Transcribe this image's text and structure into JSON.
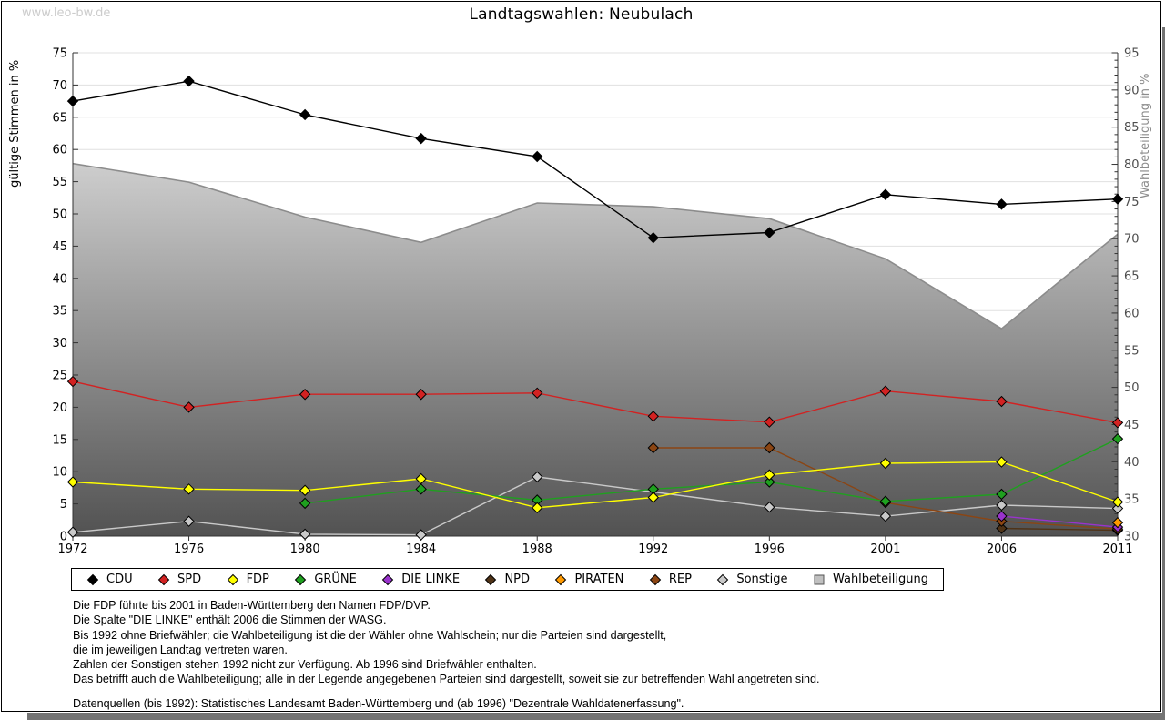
{
  "watermark": "www.leo-bw.de",
  "title": "Landtagswahlen: Neubulach",
  "chart_data": {
    "type": "line",
    "title": "Landtagswahlen: Neubulach",
    "categories": [
      "1972",
      "1976",
      "1980",
      "1984",
      "1988",
      "1992",
      "1996",
      "2001",
      "2006",
      "2011"
    ],
    "left_axis": {
      "label": "gültige Stimmen in %",
      "min": 0,
      "max": 75,
      "step": 5
    },
    "right_axis": {
      "label": "Wahlbeteiligung in %",
      "min": 30,
      "max": 95,
      "step": 5
    },
    "grid": true,
    "legend_position": "bottom",
    "series": [
      {
        "name": "CDU",
        "color": "#000000",
        "marker": "diamond",
        "axis": "left",
        "values": [
          67.5,
          70.6,
          65.4,
          61.7,
          58.9,
          46.3,
          47.1,
          53.0,
          51.5,
          52.3
        ]
      },
      {
        "name": "SPD",
        "color": "#d22222",
        "marker": "diamond",
        "axis": "left",
        "values": [
          24.0,
          20.0,
          22.0,
          22.0,
          22.2,
          18.6,
          17.7,
          22.5,
          20.9,
          17.6
        ]
      },
      {
        "name": "FDP",
        "color": "#ffff00",
        "marker": "diamond",
        "axis": "left",
        "values": [
          8.4,
          7.3,
          7.1,
          8.9,
          4.4,
          6.0,
          9.5,
          11.3,
          11.5,
          5.3
        ]
      },
      {
        "name": "GRÜNE",
        "color": "#1fa01f",
        "marker": "diamond",
        "axis": "left",
        "values": [
          null,
          null,
          5.1,
          7.3,
          5.6,
          7.3,
          8.4,
          5.4,
          6.5,
          15.1
        ]
      },
      {
        "name": "DIE LINKE",
        "color": "#9933cc",
        "marker": "diamond",
        "axis": "left",
        "values": [
          null,
          null,
          null,
          null,
          null,
          null,
          null,
          null,
          3.1,
          1.4
        ]
      },
      {
        "name": "NPD",
        "color": "#4f3317",
        "marker": "diamond",
        "axis": "left",
        "values": [
          null,
          null,
          null,
          null,
          null,
          null,
          null,
          null,
          1.2,
          0.9
        ]
      },
      {
        "name": "PIRATEN",
        "color": "#ff9900",
        "marker": "diamond",
        "axis": "left",
        "values": [
          null,
          null,
          null,
          null,
          null,
          null,
          null,
          null,
          null,
          2.1
        ]
      },
      {
        "name": "REP",
        "color": "#8b4513",
        "marker": "diamond",
        "axis": "left",
        "values": [
          null,
          null,
          null,
          null,
          null,
          13.7,
          13.7,
          5.2,
          2.3,
          1.1
        ]
      },
      {
        "name": "Sonstige",
        "color": "#c9c9c9",
        "marker": "diamond",
        "axis": "left",
        "values": [
          0.6,
          2.3,
          0.3,
          0.2,
          9.2,
          null,
          4.5,
          3.1,
          4.8,
          4.3
        ]
      },
      {
        "name": "Wahlbeteiligung",
        "type": "area",
        "axis": "right",
        "marker": "square",
        "color": "#c0c0c0",
        "stroke": "#8c8c8c",
        "fill_top": "#f2f2f2",
        "fill_bottom": "#525252",
        "values": [
          80.1,
          77.6,
          72.9,
          69.5,
          74.8,
          74.3,
          72.7,
          67.3,
          57.9,
          70.6
        ]
      }
    ]
  },
  "footnotes": [
    "Die FDP führte bis 2001 in Baden-Württemberg den Namen FDP/DVP.",
    "Die Spalte \"DIE LINKE\" enthält 2006 die Stimmen der WASG.",
    "Bis 1992 ohne Briefwähler; die Wahlbeteiligung ist die der Wähler ohne Wahlschein; nur die Parteien sind dargestellt,",
    "die im jeweiligen Landtag vertreten waren.",
    "Zahlen der Sonstigen stehen 1992 nicht zur Verfügung. Ab 1996 sind Briefwähler enthalten.",
    "Das betrifft auch die Wahlbeteiligung; alle in der Legende angegebenen Parteien sind dargestellt, soweit sie zur betreffenden Wahl angetreten sind."
  ],
  "source_line": "Datenquellen (bis 1992): Statistisches Landesamt Baden-Württemberg und (ab 1996) \"Dezentrale Wahldatenerfassung\"."
}
